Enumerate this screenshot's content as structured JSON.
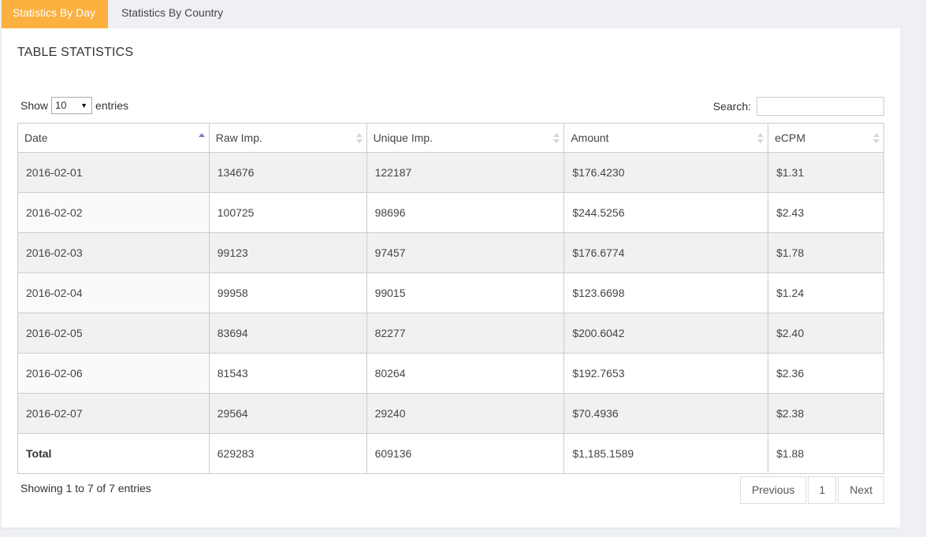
{
  "tabs": [
    {
      "label": "Statistics By Day",
      "active": true
    },
    {
      "label": "Statistics By Country",
      "active": false
    }
  ],
  "panel": {
    "title": "TABLE STATISTICS"
  },
  "length_control": {
    "show_label": "Show",
    "selected": "10",
    "entries_label": "entries"
  },
  "search": {
    "label": "Search:",
    "value": "",
    "placeholder": ""
  },
  "table": {
    "columns": [
      "Date",
      "Raw Imp.",
      "Unique Imp.",
      "Amount",
      "eCPM"
    ],
    "sorted_column": "Date",
    "sort_direction": "asc",
    "rows": [
      [
        "2016-02-01",
        "134676",
        "122187",
        "$176.4230",
        "$1.31"
      ],
      [
        "2016-02-02",
        "100725",
        "98696",
        "$244.5256",
        "$2.43"
      ],
      [
        "2016-02-03",
        "99123",
        "97457",
        "$176.6774",
        "$1.78"
      ],
      [
        "2016-02-04",
        "99958",
        "99015",
        "$123.6698",
        "$1.24"
      ],
      [
        "2016-02-05",
        "83694",
        "82277",
        "$200.6042",
        "$2.40"
      ],
      [
        "2016-02-06",
        "81543",
        "80264",
        "$192.7653",
        "$2.36"
      ],
      [
        "2016-02-07",
        "29564",
        "29240",
        "$70.4936",
        "$2.38"
      ]
    ],
    "total": [
      "Total",
      "629283",
      "609136",
      "$1,185.1589",
      "$1.88"
    ]
  },
  "footer": {
    "info": "Showing 1 to 7 of 7 entries",
    "pagination": {
      "previous": "Previous",
      "current_page": "1",
      "next": "Next"
    }
  },
  "colors": {
    "active_tab": "#fbb040",
    "sort_active": "#6f7fc8",
    "odd_row": "#f1f1f1"
  }
}
